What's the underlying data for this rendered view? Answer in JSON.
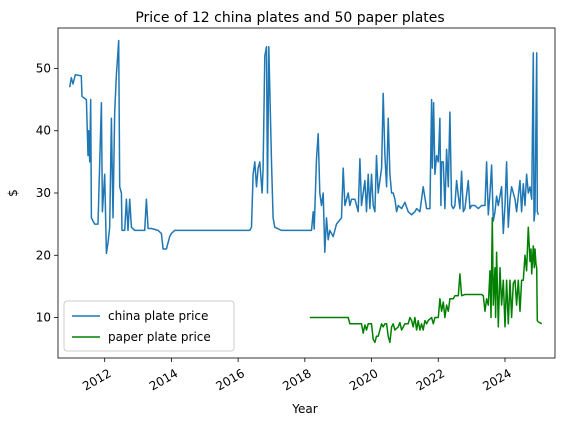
{
  "chart_data": {
    "type": "line",
    "title": "Price of 12 china plates and 50 paper plates",
    "xlabel": "Year",
    "ylabel": "$",
    "xlim": [
      2010.6,
      2025.5
    ],
    "ylim": [
      3.5,
      56.5
    ],
    "x_ticks": [
      2012,
      2014,
      2016,
      2018,
      2020,
      2022,
      2024
    ],
    "x_tick_labels": [
      "2012",
      "2014",
      "2016",
      "2018",
      "2020",
      "2022",
      "2024"
    ],
    "y_ticks": [
      10,
      20,
      30,
      40,
      50
    ],
    "y_tick_labels": [
      "10",
      "20",
      "30",
      "40",
      "50"
    ],
    "grid": false,
    "legend_position": "lower-left",
    "series": [
      {
        "name": "china plate price",
        "color": "#1f77b4",
        "points": [
          [
            2010.95,
            47
          ],
          [
            2011.0,
            48.5
          ],
          [
            2011.05,
            47.5
          ],
          [
            2011.12,
            49
          ],
          [
            2011.3,
            48.8
          ],
          [
            2011.32,
            45.5
          ],
          [
            2011.45,
            45
          ],
          [
            2011.5,
            36
          ],
          [
            2011.52,
            40
          ],
          [
            2011.55,
            35
          ],
          [
            2011.58,
            45
          ],
          [
            2011.6,
            26
          ],
          [
            2011.7,
            25
          ],
          [
            2011.8,
            25
          ],
          [
            2011.9,
            44.5
          ],
          [
            2011.93,
            27
          ],
          [
            2012.0,
            33
          ],
          [
            2012.05,
            20.3
          ],
          [
            2012.1,
            22
          ],
          [
            2012.15,
            24.5
          ],
          [
            2012.2,
            42
          ],
          [
            2012.25,
            26
          ],
          [
            2012.3,
            43
          ],
          [
            2012.35,
            49
          ],
          [
            2012.42,
            54.5
          ],
          [
            2012.45,
            31
          ],
          [
            2012.5,
            30
          ],
          [
            2012.52,
            24
          ],
          [
            2012.6,
            24
          ],
          [
            2012.65,
            29
          ],
          [
            2012.7,
            24
          ],
          [
            2012.75,
            29
          ],
          [
            2012.8,
            24.5
          ],
          [
            2012.9,
            24
          ],
          [
            2013.0,
            24
          ],
          [
            2013.2,
            24
          ],
          [
            2013.25,
            29
          ],
          [
            2013.3,
            24.3
          ],
          [
            2013.4,
            24.3
          ],
          [
            2013.6,
            24
          ],
          [
            2013.7,
            23.5
          ],
          [
            2013.75,
            21
          ],
          [
            2013.85,
            21
          ],
          [
            2013.95,
            23
          ],
          [
            2014.0,
            23.5
          ],
          [
            2014.1,
            24
          ],
          [
            2015.0,
            24
          ],
          [
            2016.0,
            24
          ],
          [
            2016.35,
            24
          ],
          [
            2016.4,
            24.5
          ],
          [
            2016.45,
            33
          ],
          [
            2016.5,
            35
          ],
          [
            2016.55,
            31
          ],
          [
            2016.6,
            34
          ],
          [
            2016.65,
            35
          ],
          [
            2016.72,
            30
          ],
          [
            2016.75,
            34
          ],
          [
            2016.8,
            52
          ],
          [
            2016.85,
            53.5
          ],
          [
            2016.88,
            30
          ],
          [
            2016.92,
            53.5
          ],
          [
            2017.0,
            35
          ],
          [
            2017.05,
            26
          ],
          [
            2017.1,
            24.5
          ],
          [
            2017.3,
            24
          ],
          [
            2018.0,
            24
          ],
          [
            2018.2,
            24
          ],
          [
            2018.25,
            27
          ],
          [
            2018.28,
            24.2
          ],
          [
            2018.35,
            35.5
          ],
          [
            2018.4,
            39.5
          ],
          [
            2018.45,
            30
          ],
          [
            2018.5,
            28
          ],
          [
            2018.55,
            30
          ],
          [
            2018.6,
            20.5
          ],
          [
            2018.65,
            26
          ],
          [
            2018.7,
            22.5
          ],
          [
            2018.75,
            24
          ],
          [
            2018.85,
            23
          ],
          [
            2018.95,
            25
          ],
          [
            2019.1,
            26
          ],
          [
            2019.15,
            34
          ],
          [
            2019.2,
            28
          ],
          [
            2019.3,
            30
          ],
          [
            2019.35,
            28
          ],
          [
            2019.4,
            29
          ],
          [
            2019.5,
            29
          ],
          [
            2019.6,
            27
          ],
          [
            2019.65,
            35.5
          ],
          [
            2019.7,
            28
          ],
          [
            2019.8,
            32
          ],
          [
            2019.85,
            27
          ],
          [
            2019.9,
            33
          ],
          [
            2019.95,
            27.5
          ],
          [
            2020.0,
            33
          ],
          [
            2020.05,
            28
          ],
          [
            2020.1,
            27
          ],
          [
            2020.15,
            36
          ],
          [
            2020.2,
            30
          ],
          [
            2020.3,
            34
          ],
          [
            2020.35,
            46
          ],
          [
            2020.4,
            36
          ],
          [
            2020.45,
            31
          ],
          [
            2020.5,
            42
          ],
          [
            2020.55,
            33
          ],
          [
            2020.6,
            30
          ],
          [
            2020.65,
            30
          ],
          [
            2020.7,
            29
          ],
          [
            2020.75,
            27
          ],
          [
            2020.8,
            28
          ],
          [
            2020.9,
            27.5
          ],
          [
            2021.0,
            28.5
          ],
          [
            2021.1,
            27
          ],
          [
            2021.2,
            26.5
          ],
          [
            2021.3,
            27
          ],
          [
            2021.35,
            27.5
          ],
          [
            2021.45,
            27
          ],
          [
            2021.55,
            31
          ],
          [
            2021.65,
            27.5
          ],
          [
            2021.75,
            27.5
          ],
          [
            2021.8,
            45
          ],
          [
            2021.82,
            34
          ],
          [
            2021.86,
            44.5
          ],
          [
            2021.9,
            33
          ],
          [
            2021.95,
            36
          ],
          [
            2022.0,
            35
          ],
          [
            2022.05,
            42
          ],
          [
            2022.08,
            28
          ],
          [
            2022.1,
            35
          ],
          [
            2022.15,
            35
          ],
          [
            2022.2,
            27.5
          ],
          [
            2022.25,
            37
          ],
          [
            2022.3,
            31
          ],
          [
            2022.35,
            43
          ],
          [
            2022.4,
            28
          ],
          [
            2022.45,
            27.5
          ],
          [
            2022.5,
            28
          ],
          [
            2022.55,
            32
          ],
          [
            2022.6,
            29.5
          ],
          [
            2022.65,
            27.5
          ],
          [
            2022.7,
            33.5
          ],
          [
            2022.75,
            27
          ],
          [
            2022.8,
            27.5
          ],
          [
            2022.9,
            32
          ],
          [
            2022.95,
            27.5
          ],
          [
            2023.0,
            28
          ],
          [
            2023.1,
            28
          ],
          [
            2023.2,
            27.5
          ],
          [
            2023.3,
            28
          ],
          [
            2023.4,
            28
          ],
          [
            2023.45,
            35
          ],
          [
            2023.5,
            26.5
          ],
          [
            2023.55,
            30
          ],
          [
            2023.6,
            34.5
          ],
          [
            2023.65,
            25.5
          ],
          [
            2023.7,
            27
          ],
          [
            2023.75,
            29.5
          ],
          [
            2023.8,
            28
          ],
          [
            2023.9,
            31
          ],
          [
            2023.95,
            23.5
          ],
          [
            2024.0,
            28
          ],
          [
            2024.05,
            35
          ],
          [
            2024.1,
            24.5
          ],
          [
            2024.15,
            29
          ],
          [
            2024.2,
            31
          ],
          [
            2024.3,
            29
          ],
          [
            2024.35,
            27
          ],
          [
            2024.45,
            32
          ],
          [
            2024.5,
            27
          ],
          [
            2024.55,
            31.5
          ],
          [
            2024.6,
            28
          ],
          [
            2024.65,
            33
          ],
          [
            2024.7,
            30
          ],
          [
            2024.75,
            31
          ],
          [
            2024.8,
            29
          ],
          [
            2024.85,
            52.5
          ],
          [
            2024.87,
            25.5
          ],
          [
            2024.9,
            27
          ],
          [
            2024.95,
            52.5
          ],
          [
            2024.97,
            27
          ],
          [
            2025.0,
            26.5
          ]
        ]
      },
      {
        "name": "paper plate price",
        "color": "#008000",
        "points": [
          [
            2018.15,
            10
          ],
          [
            2018.5,
            10
          ],
          [
            2018.8,
            10
          ],
          [
            2019.0,
            10
          ],
          [
            2019.1,
            10
          ],
          [
            2019.3,
            10
          ],
          [
            2019.35,
            9
          ],
          [
            2019.7,
            9
          ],
          [
            2019.75,
            7.5
          ],
          [
            2019.8,
            8.8
          ],
          [
            2019.85,
            8
          ],
          [
            2019.9,
            9
          ],
          [
            2020.0,
            9
          ],
          [
            2020.05,
            6.5
          ],
          [
            2020.1,
            6
          ],
          [
            2020.15,
            7
          ],
          [
            2020.2,
            7
          ],
          [
            2020.25,
            8
          ],
          [
            2020.3,
            9
          ],
          [
            2020.35,
            8.5
          ],
          [
            2020.4,
            9
          ],
          [
            2020.45,
            9
          ],
          [
            2020.5,
            7
          ],
          [
            2020.55,
            6
          ],
          [
            2020.6,
            8.5
          ],
          [
            2020.65,
            9
          ],
          [
            2020.7,
            8
          ],
          [
            2020.8,
            8.5
          ],
          [
            2020.85,
            9.2
          ],
          [
            2020.9,
            8
          ],
          [
            2021.0,
            9
          ],
          [
            2021.1,
            9
          ],
          [
            2021.15,
            10
          ],
          [
            2021.2,
            9.5
          ],
          [
            2021.25,
            8.5
          ],
          [
            2021.3,
            10
          ],
          [
            2021.35,
            8
          ],
          [
            2021.4,
            9.5
          ],
          [
            2021.45,
            8
          ],
          [
            2021.5,
            9
          ],
          [
            2021.55,
            8
          ],
          [
            2021.6,
            9.5
          ],
          [
            2021.65,
            9
          ],
          [
            2021.7,
            9.5
          ],
          [
            2021.8,
            10
          ],
          [
            2021.85,
            9
          ],
          [
            2021.9,
            10
          ],
          [
            2022.0,
            10
          ],
          [
            2022.05,
            13
          ],
          [
            2022.1,
            11
          ],
          [
            2022.15,
            12.5
          ],
          [
            2022.2,
            10
          ],
          [
            2022.25,
            12
          ],
          [
            2022.3,
            11
          ],
          [
            2022.35,
            13
          ],
          [
            2022.45,
            13
          ],
          [
            2022.5,
            13.5
          ],
          [
            2022.6,
            13.5
          ],
          [
            2022.65,
            17
          ],
          [
            2022.7,
            13.5
          ],
          [
            2022.8,
            13.7
          ],
          [
            2023.0,
            13.7
          ],
          [
            2023.2,
            13.7
          ],
          [
            2023.3,
            13.7
          ],
          [
            2023.35,
            13.5
          ],
          [
            2023.4,
            11
          ],
          [
            2023.45,
            13
          ],
          [
            2023.5,
            12
          ],
          [
            2023.55,
            17.5
          ],
          [
            2023.58,
            10
          ],
          [
            2023.62,
            26
          ],
          [
            2023.65,
            12
          ],
          [
            2023.7,
            18
          ],
          [
            2023.72,
            10
          ],
          [
            2023.75,
            20.5
          ],
          [
            2023.8,
            8.5
          ],
          [
            2023.85,
            18
          ],
          [
            2023.9,
            12
          ],
          [
            2023.95,
            16
          ],
          [
            2024.0,
            8.5
          ],
          [
            2024.05,
            16
          ],
          [
            2024.1,
            9
          ],
          [
            2024.15,
            16
          ],
          [
            2024.2,
            10
          ],
          [
            2024.25,
            15.5
          ],
          [
            2024.3,
            16
          ],
          [
            2024.35,
            12
          ],
          [
            2024.4,
            16
          ],
          [
            2024.45,
            11
          ],
          [
            2024.5,
            16
          ],
          [
            2024.55,
            16
          ],
          [
            2024.6,
            20
          ],
          [
            2024.65,
            17.5
          ],
          [
            2024.7,
            24.5
          ],
          [
            2024.75,
            19
          ],
          [
            2024.78,
            21
          ],
          [
            2024.8,
            17
          ],
          [
            2024.85,
            21.5
          ],
          [
            2024.88,
            18
          ],
          [
            2024.9,
            21
          ],
          [
            2024.93,
            18.5
          ],
          [
            2024.95,
            18
          ],
          [
            2024.97,
            9.5
          ],
          [
            2025.0,
            9.3
          ],
          [
            2025.1,
            9
          ]
        ]
      }
    ]
  }
}
